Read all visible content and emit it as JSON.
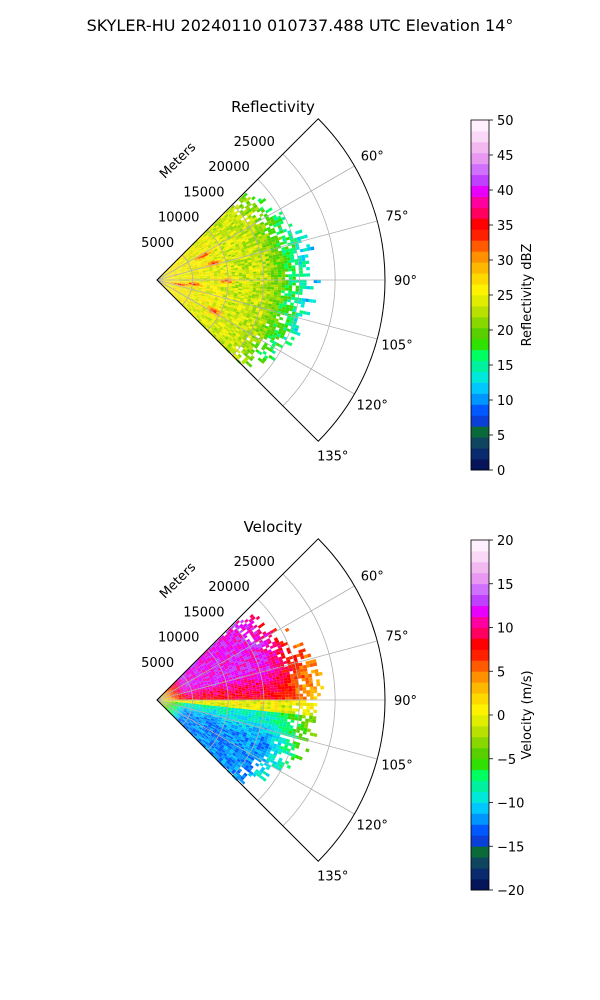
{
  "suptitle": "SKYLER-HU  20240110  010737.488 UTC Elevation 14°",
  "chart_data": [
    {
      "type": "heatmap",
      "subtype": "polar-sector-ppi",
      "title": "Reflectivity",
      "radial_axis_label": "Meters",
      "range_ticks": [
        5000,
        10000,
        15000,
        20000,
        25000
      ],
      "range_tick_labels": [
        "5000",
        "10000",
        "15000",
        "20000",
        "25000"
      ],
      "range_max": 32000,
      "azimuth_range_deg": [
        45,
        135
      ],
      "azimuth_ticks": [
        60,
        75,
        90,
        105,
        120,
        135
      ],
      "azimuth_tick_labels": [
        "60°",
        "75°",
        "90°",
        "105°",
        "120°",
        "135°"
      ],
      "grid": true,
      "data_extent_range_m": [
        0,
        24000
      ],
      "data_description_values": {
        "near_range_dbz": 27,
        "mid_range_dbz": 25,
        "cores_dbz": 36,
        "outer_edge_dbz": 18
      },
      "colorbar": {
        "label": "Reflectivity dBZ",
        "vmin": 0,
        "vmax": 50,
        "ticks": [
          0,
          5,
          10,
          15,
          20,
          25,
          30,
          35,
          40,
          45,
          50
        ],
        "tick_labels": [
          "0",
          "5",
          "10",
          "15",
          "20",
          "25",
          "30",
          "35",
          "40",
          "45",
          "50"
        ],
        "colors": [
          "#06145a",
          "#0a2a6e",
          "#0f4560",
          "#0a6a3a",
          "#0a3fd8",
          "#0058ff",
          "#0096ff",
          "#00c8ff",
          "#00e8d8",
          "#00f0a0",
          "#00ff60",
          "#30e000",
          "#58d000",
          "#88d800",
          "#b8e000",
          "#e0ec00",
          "#fff200",
          "#ffd800",
          "#ffb800",
          "#ff9000",
          "#ff5a00",
          "#ff2000",
          "#ff0000",
          "#ff0060",
          "#ff00a0",
          "#e800ff",
          "#c040ff",
          "#d070ff",
          "#e898f0",
          "#f2b8f0",
          "#fad8f8",
          "#fff0ff"
        ]
      }
    },
    {
      "type": "heatmap",
      "subtype": "polar-sector-ppi",
      "title": "Velocity",
      "radial_axis_label": "Meters",
      "range_ticks": [
        5000,
        10000,
        15000,
        20000,
        25000
      ],
      "range_tick_labels": [
        "5000",
        "10000",
        "15000",
        "20000",
        "25000"
      ],
      "range_max": 32000,
      "azimuth_range_deg": [
        45,
        135
      ],
      "azimuth_ticks": [
        60,
        75,
        90,
        105,
        120,
        135
      ],
      "azimuth_tick_labels": [
        "60°",
        "75°",
        "90°",
        "105°",
        "120°",
        "135°"
      ],
      "grid": true,
      "data_extent_range_m": [
        0,
        25000
      ],
      "colorbar": {
        "label": "Velocity (m/s)",
        "vmin": -20,
        "vmax": 20,
        "ticks": [
          -20,
          -15,
          -10,
          -5,
          0,
          5,
          10,
          15,
          20
        ],
        "tick_labels": [
          "−20",
          "−15",
          "−10",
          "−5",
          "0",
          "5",
          "10",
          "15",
          "20"
        ],
        "colors": [
          "#06145a",
          "#0a2a6e",
          "#0f4560",
          "#0a6a3a",
          "#0a3fd8",
          "#0058ff",
          "#0096ff",
          "#00c8ff",
          "#00e8d8",
          "#00f0a0",
          "#00ff60",
          "#30e000",
          "#58d000",
          "#88d800",
          "#b8e000",
          "#e0ec00",
          "#fff200",
          "#ffd800",
          "#ffb800",
          "#ff9000",
          "#ff5a00",
          "#ff2000",
          "#ff0000",
          "#ff0060",
          "#ff00a0",
          "#e800ff",
          "#c040ff",
          "#d070ff",
          "#e898f0",
          "#f2b8f0",
          "#fad8f8",
          "#fff0ff"
        ]
      }
    }
  ]
}
